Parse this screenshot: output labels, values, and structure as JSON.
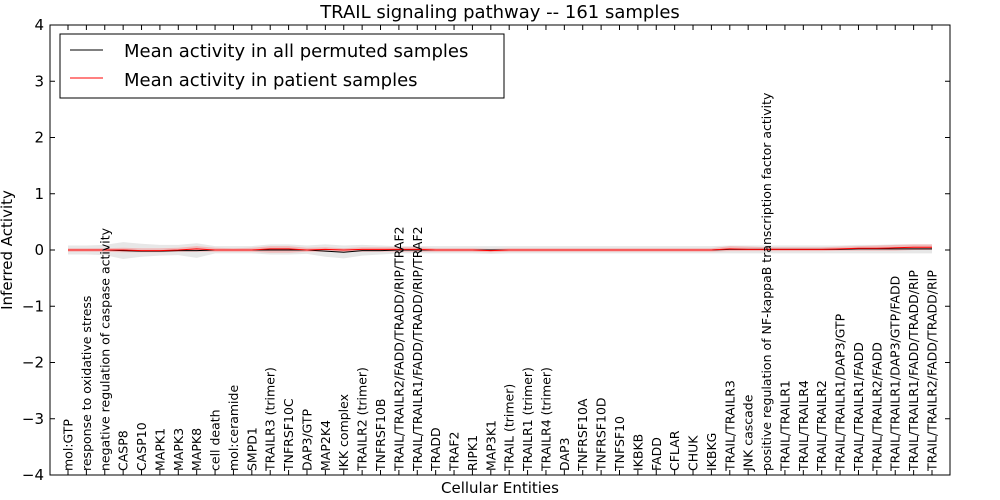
{
  "chart_data": {
    "type": "line",
    "title": "TRAIL signaling pathway -- 161 samples",
    "xlabel": "Cellular Entities",
    "ylabel": "Inferred Activity",
    "ylim": [
      -4,
      4
    ],
    "yticks": [
      -4,
      -3,
      -2,
      -1,
      0,
      1,
      2,
      3,
      4
    ],
    "ytick_labels": [
      "−4",
      "−3",
      "−2",
      "−1",
      "0",
      "1",
      "2",
      "3",
      "4"
    ],
    "legend_position": "top-left",
    "categories": [
      "mol:GTP",
      "response to oxidative stress",
      "negative regulation of caspase activity",
      "CASP8",
      "CASP10",
      "MAPK1",
      "MAPK3",
      "MAPK8",
      "cell death",
      "mol:ceramide",
      "SMPD1",
      "TRAILR3 (trimer)",
      "TNFRSF10C",
      "DAP3/GTP",
      "MAP2K4",
      "IKK complex",
      "TRAILR2 (trimer)",
      "TNFRSF10B",
      "TRAIL/TRAILR2/FADD/TRADD/RIP/TRAF2",
      "TRAIL/TRAILR1/FADD/TRADD/RIP/TRAF2",
      "TRADD",
      "TRAF2",
      "RIPK1",
      "MAP3K1",
      "TRAIL (trimer)",
      "TRAILR1 (trimer)",
      "TRAILR4 (trimer)",
      "DAP3",
      "TNFRSF10A",
      "TNFRSF10D",
      "TNFSF10",
      "IKBKB",
      "FADD",
      "CFLAR",
      "CHUK",
      "IKBKG",
      "TRAIL/TRAILR3",
      "JNK cascade",
      "positive regulation of NF-kappaB transcription factor activity",
      "TRAIL/TRAILR1",
      "TRAIL/TRAILR4",
      "TRAIL/TRAILR2",
      "TRAIL/TRAILR1/DAP3/GTP",
      "TRAIL/TRAILR1/FADD",
      "TRAIL/TRAILR2/FADD",
      "TRAIL/TRAILR1/DAP3/GTP/FADD",
      "TRAIL/TRAILR1/FADD/TRADD/RIP",
      "TRAIL/TRAILR2/FADD/TRADD/RIP"
    ],
    "series": [
      {
        "name": "Mean activity in all permuted samples",
        "color": "#000000",
        "values": [
          0,
          0,
          0,
          -0.01,
          -0.02,
          -0.02,
          -0.01,
          -0.01,
          0,
          0,
          0,
          0,
          0,
          0,
          -0.02,
          -0.04,
          -0.01,
          -0.01,
          0,
          0,
          0,
          0,
          0,
          0,
          0,
          0,
          0,
          0,
          0,
          0,
          0,
          0,
          0,
          0,
          0,
          0,
          0.01,
          0.01,
          0.01,
          0.01,
          0.01,
          0.01,
          0.01,
          0.02,
          0.02,
          0.02,
          0.02,
          0.02
        ],
        "band_lower": [
          -0.08,
          -0.08,
          -0.09,
          -0.16,
          -0.12,
          -0.1,
          -0.09,
          -0.14,
          -0.06,
          -0.06,
          -0.06,
          -0.08,
          -0.08,
          -0.07,
          -0.12,
          -0.15,
          -0.1,
          -0.08,
          -0.06,
          -0.06,
          -0.06,
          -0.06,
          -0.06,
          -0.07,
          -0.06,
          -0.06,
          -0.06,
          -0.06,
          -0.06,
          -0.06,
          -0.06,
          -0.06,
          -0.06,
          -0.06,
          -0.06,
          -0.06,
          -0.06,
          -0.06,
          -0.06,
          -0.06,
          -0.06,
          -0.06,
          -0.06,
          -0.06,
          -0.06,
          -0.06,
          -0.06,
          -0.06
        ],
        "band_upper": [
          0.08,
          0.08,
          0.09,
          0.14,
          0.11,
          0.09,
          0.09,
          0.12,
          0.07,
          0.07,
          0.07,
          0.1,
          0.1,
          0.08,
          0.1,
          0.08,
          0.09,
          0.08,
          0.07,
          0.07,
          0.07,
          0.07,
          0.07,
          0.07,
          0.07,
          0.07,
          0.07,
          0.07,
          0.07,
          0.07,
          0.07,
          0.07,
          0.07,
          0.07,
          0.07,
          0.07,
          0.08,
          0.08,
          0.08,
          0.08,
          0.08,
          0.08,
          0.08,
          0.09,
          0.09,
          0.1,
          0.1,
          0.1
        ]
      },
      {
        "name": "Mean activity in patient samples",
        "color": "#ff0000",
        "values": [
          0,
          0,
          0,
          0,
          -0.01,
          -0.01,
          0,
          0.02,
          0,
          0,
          0,
          0.02,
          0.02,
          0,
          0.01,
          0,
          0.01,
          0.01,
          0.01,
          0.01,
          0,
          0,
          0,
          -0.01,
          0,
          0,
          0,
          0,
          0,
          0,
          0,
          0,
          0,
          0,
          0,
          0,
          0.02,
          0.01,
          0.01,
          0.01,
          0.01,
          0.01,
          0.02,
          0.03,
          0.03,
          0.04,
          0.05,
          0.05
        ],
        "band_lower": [
          -0.03,
          -0.03,
          -0.03,
          -0.04,
          -0.04,
          -0.04,
          -0.03,
          -0.03,
          -0.03,
          -0.03,
          -0.03,
          -0.05,
          -0.05,
          -0.03,
          -0.03,
          -0.03,
          -0.03,
          -0.03,
          -0.03,
          -0.03,
          -0.03,
          -0.03,
          -0.03,
          -0.04,
          -0.03,
          -0.03,
          -0.03,
          -0.03,
          -0.03,
          -0.03,
          -0.03,
          -0.03,
          -0.03,
          -0.03,
          -0.03,
          -0.03,
          -0.02,
          -0.02,
          -0.02,
          -0.02,
          -0.02,
          -0.02,
          -0.01,
          -0.01,
          -0.01,
          -0.01,
          0,
          0
        ],
        "band_upper": [
          0.03,
          0.03,
          0.03,
          0.04,
          0.03,
          0.03,
          0.04,
          0.07,
          0.04,
          0.03,
          0.04,
          0.07,
          0.07,
          0.04,
          0.05,
          0.03,
          0.05,
          0.05,
          0.05,
          0.05,
          0.03,
          0.03,
          0.03,
          0.02,
          0.03,
          0.03,
          0.03,
          0.03,
          0.03,
          0.03,
          0.03,
          0.03,
          0.03,
          0.03,
          0.03,
          0.03,
          0.07,
          0.06,
          0.05,
          0.05,
          0.05,
          0.05,
          0.06,
          0.07,
          0.08,
          0.09,
          0.1,
          0.1
        ]
      }
    ]
  }
}
